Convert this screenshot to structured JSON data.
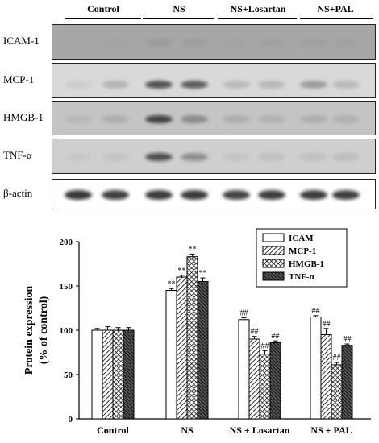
{
  "groups": [
    "Control",
    "NS",
    "NS+Losartan",
    "NS+PAL"
  ],
  "blots": [
    {
      "label": "ICAM-1",
      "tone": "#a7a7a7",
      "band_intensity": [
        0.22,
        0.25,
        0.35,
        0.32,
        0.25,
        0.28,
        0.3,
        0.28
      ]
    },
    {
      "label": "MCP-1",
      "tone": "#d9d9d9",
      "band_intensity": [
        0.12,
        0.35,
        0.85,
        0.8,
        0.3,
        0.32,
        0.5,
        0.3
      ]
    },
    {
      "label": "HMGB-1",
      "tone": "#c4c4c4",
      "band_intensity": [
        0.2,
        0.3,
        0.9,
        0.55,
        0.3,
        0.28,
        0.3,
        0.28
      ]
    },
    {
      "label": "TNF-α",
      "tone": "#cfcfcf",
      "band_intensity": [
        0.1,
        0.15,
        0.85,
        0.55,
        0.15,
        0.2,
        0.18,
        0.22
      ]
    },
    {
      "label": "β-actin",
      "tone": "#ffffff",
      "band_intensity": [
        0.95,
        0.92,
        0.93,
        0.93,
        0.9,
        0.92,
        0.93,
        0.92
      ]
    }
  ],
  "chart_data": {
    "type": "bar",
    "categories": [
      "Control",
      "NS",
      "NS + Losartan",
      "NS + PAL"
    ],
    "series": [
      {
        "name": "ICAM",
        "values": [
          100,
          145,
          112,
          115
        ],
        "errors": [
          2,
          2,
          2,
          1.5
        ],
        "pattern": "white"
      },
      {
        "name": "MCP-1",
        "values": [
          100,
          160,
          90,
          95
        ],
        "errors": [
          4,
          2,
          3,
          7
        ],
        "pattern": "diagonal"
      },
      {
        "name": "HMGB-1",
        "values": [
          100,
          183,
          73,
          61
        ],
        "errors": [
          3,
          3,
          4,
          2.5
        ],
        "pattern": "crosshatch"
      },
      {
        "name": "TNF-α",
        "values": [
          100,
          155,
          86,
          83
        ],
        "errors": [
          3,
          4,
          2,
          1.5
        ],
        "pattern": "dense"
      }
    ],
    "annotations": [
      [
        "",
        "**",
        "##",
        "##"
      ],
      [
        "",
        "**",
        "##",
        "##"
      ],
      [
        "",
        "**",
        "##",
        "##"
      ],
      [
        "",
        "**",
        "##",
        "##"
      ]
    ],
    "ylabel_lines": [
      "Protein expression",
      "(% of control)"
    ],
    "xlabel": "",
    "ylim": [
      0,
      200
    ],
    "yticks": [
      "0",
      "50",
      "100",
      "150",
      "200"
    ],
    "legend_position": "top-right",
    "grid": false
  }
}
